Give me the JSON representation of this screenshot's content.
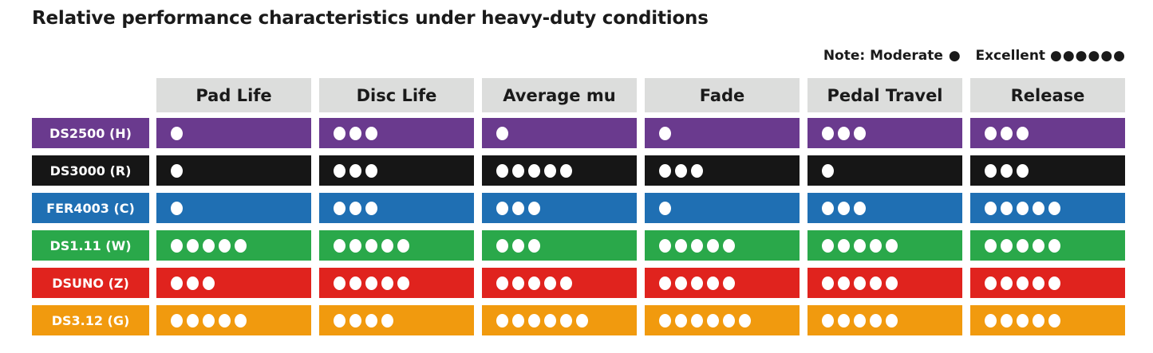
{
  "chart_data": {
    "type": "table",
    "title": "Relative performance characteristics under heavy-duty conditions",
    "note": {
      "label": "Note:",
      "moderate_label": "Moderate",
      "moderate_dots": 1,
      "excellent_label": "Excellent",
      "excellent_dots": 6
    },
    "columns": [
      "Pad Life",
      "Disc Life",
      "Average mu",
      "Fade",
      "Pedal Travel",
      "Release"
    ],
    "rows": [
      {
        "name": "DS2500 (H)",
        "color": "#6a3a8e",
        "values": [
          1,
          3,
          1,
          1,
          3,
          3
        ]
      },
      {
        "name": "DS3000 (R)",
        "color": "#161616",
        "values": [
          1,
          3,
          5,
          3,
          1,
          3
        ]
      },
      {
        "name": "FER4003 (C)",
        "color": "#1f6fb3",
        "values": [
          1,
          3,
          3,
          1,
          3,
          5
        ]
      },
      {
        "name": "DS1.11 (W)",
        "color": "#2aa84a",
        "values": [
          5,
          5,
          3,
          5,
          5,
          5
        ]
      },
      {
        "name": "DSUNO (Z)",
        "color": "#e0231e",
        "values": [
          3,
          5,
          5,
          5,
          5,
          5
        ]
      },
      {
        "name": "DS3.12 (G)",
        "color": "#f19a0e",
        "values": [
          5,
          4,
          6,
          6,
          5,
          5
        ]
      }
    ],
    "header_color": "#dcdddc"
  }
}
